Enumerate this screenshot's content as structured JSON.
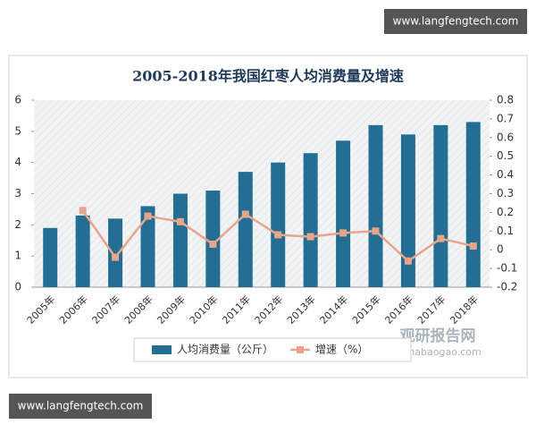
{
  "chart_data": {
    "type": "bar_line",
    "title": "2005-2018年我国红枣人均消费量及增速",
    "categories": [
      "2005年",
      "2006年",
      "2007年",
      "2008年",
      "2009年",
      "2010年",
      "2011年",
      "2012年",
      "2013年",
      "2014年",
      "2015年",
      "2016年",
      "2017年",
      "2018年"
    ],
    "series": [
      {
        "name": "人均消费量（公斤）",
        "type": "bar",
        "color": "#236e92",
        "values": [
          1.9,
          2.3,
          2.2,
          2.6,
          3.0,
          3.1,
          3.7,
          4.0,
          4.3,
          4.7,
          5.2,
          4.9,
          5.2,
          5.3
        ]
      },
      {
        "name": "增速（%）",
        "type": "line",
        "axis": "y2",
        "color": "#e8a58c",
        "values": [
          null,
          0.21,
          -0.04,
          0.18,
          0.15,
          0.03,
          0.19,
          0.08,
          0.07,
          0.09,
          0.1,
          -0.06,
          0.06,
          0.02
        ]
      }
    ],
    "ylim": [
      0,
      6
    ],
    "yticks": [
      0,
      1,
      2,
      3,
      4,
      5,
      6
    ],
    "y2lim": [
      -0.2,
      0.8
    ],
    "y2ticks": [
      -0.2,
      -0.1,
      0,
      0.1,
      0.2,
      0.3,
      0.4,
      0.5,
      0.6,
      0.7,
      0.8
    ]
  },
  "watermarks": [
    "www.langfengtech.com",
    "观研报告网",
    "chinabaogao.com",
    "www.langfengtech.com"
  ]
}
